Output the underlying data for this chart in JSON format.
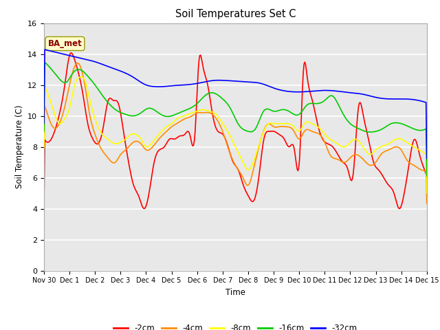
{
  "title": "Soil Temperatures Set C",
  "xlabel": "Time",
  "ylabel": "Soil Temperature (C)",
  "ylim": [
    0,
    16
  ],
  "yticks": [
    0,
    2,
    4,
    6,
    8,
    10,
    12,
    14,
    16
  ],
  "xtick_labels": [
    "Nov 30",
    "Dec 1",
    "Dec 2",
    "Dec 3",
    "Dec 4",
    "Dec 5",
    "Dec 6",
    "Dec 7",
    "Dec 8",
    "Dec 9",
    "Dec 10",
    "Dec 11",
    "Dec 12",
    "Dec 13",
    "Dec 14",
    "Dec 15"
  ],
  "annotation_text": "BA_met",
  "bg_color": "#e8e8e8",
  "line_colors": {
    "d2cm": "#ff0000",
    "d4cm": "#ff8c00",
    "d8cm": "#ffff00",
    "d16cm": "#00cc00",
    "d32cm": "#0000ff"
  },
  "legend_labels": [
    "-2cm",
    "-4cm",
    "-8cm",
    "-16cm",
    "-32cm"
  ]
}
